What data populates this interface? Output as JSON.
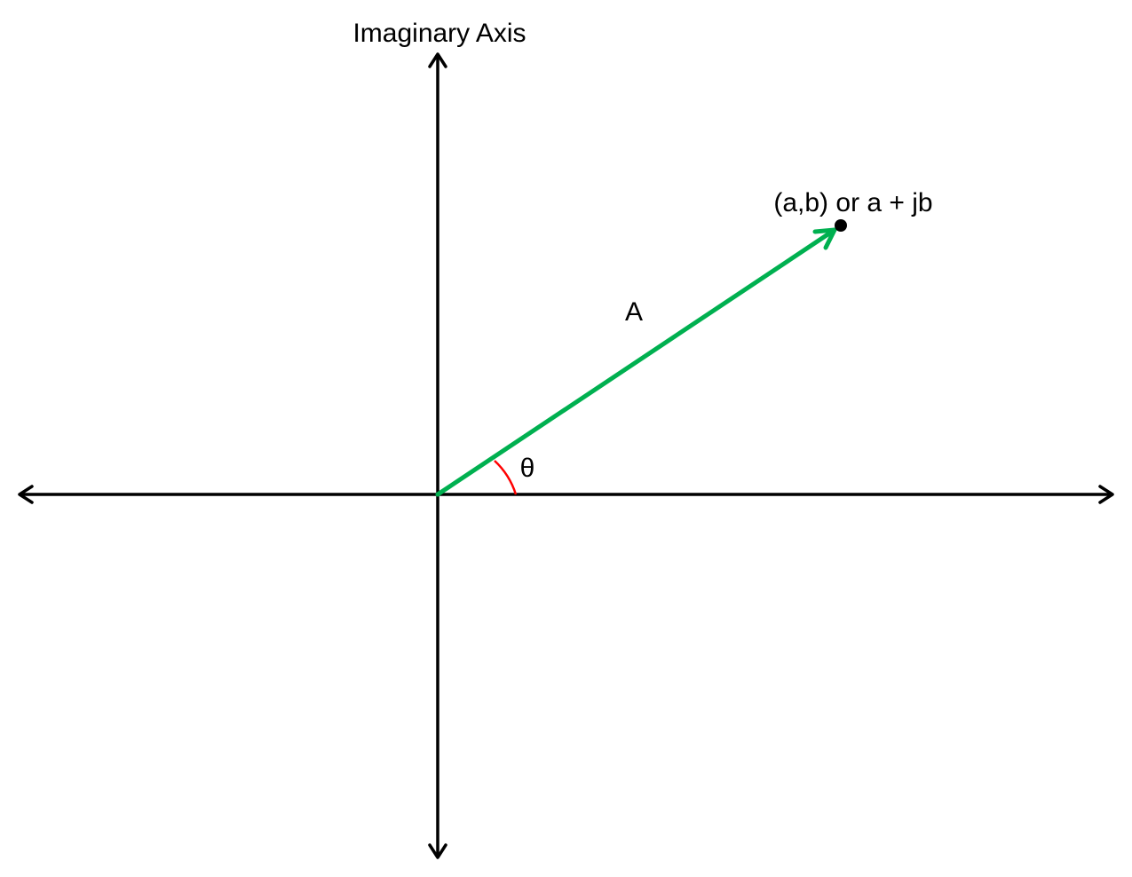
{
  "diagram": {
    "imaginary_axis_label": "Imaginary Axis",
    "point_label": "(a,b) or a + jb",
    "vector_label": "A",
    "angle_label": "θ"
  },
  "colors": {
    "axis": "#000000",
    "vector": "#00b050",
    "angle_arc": "#ff0000",
    "point": "#000000",
    "background": "#ffffff"
  }
}
